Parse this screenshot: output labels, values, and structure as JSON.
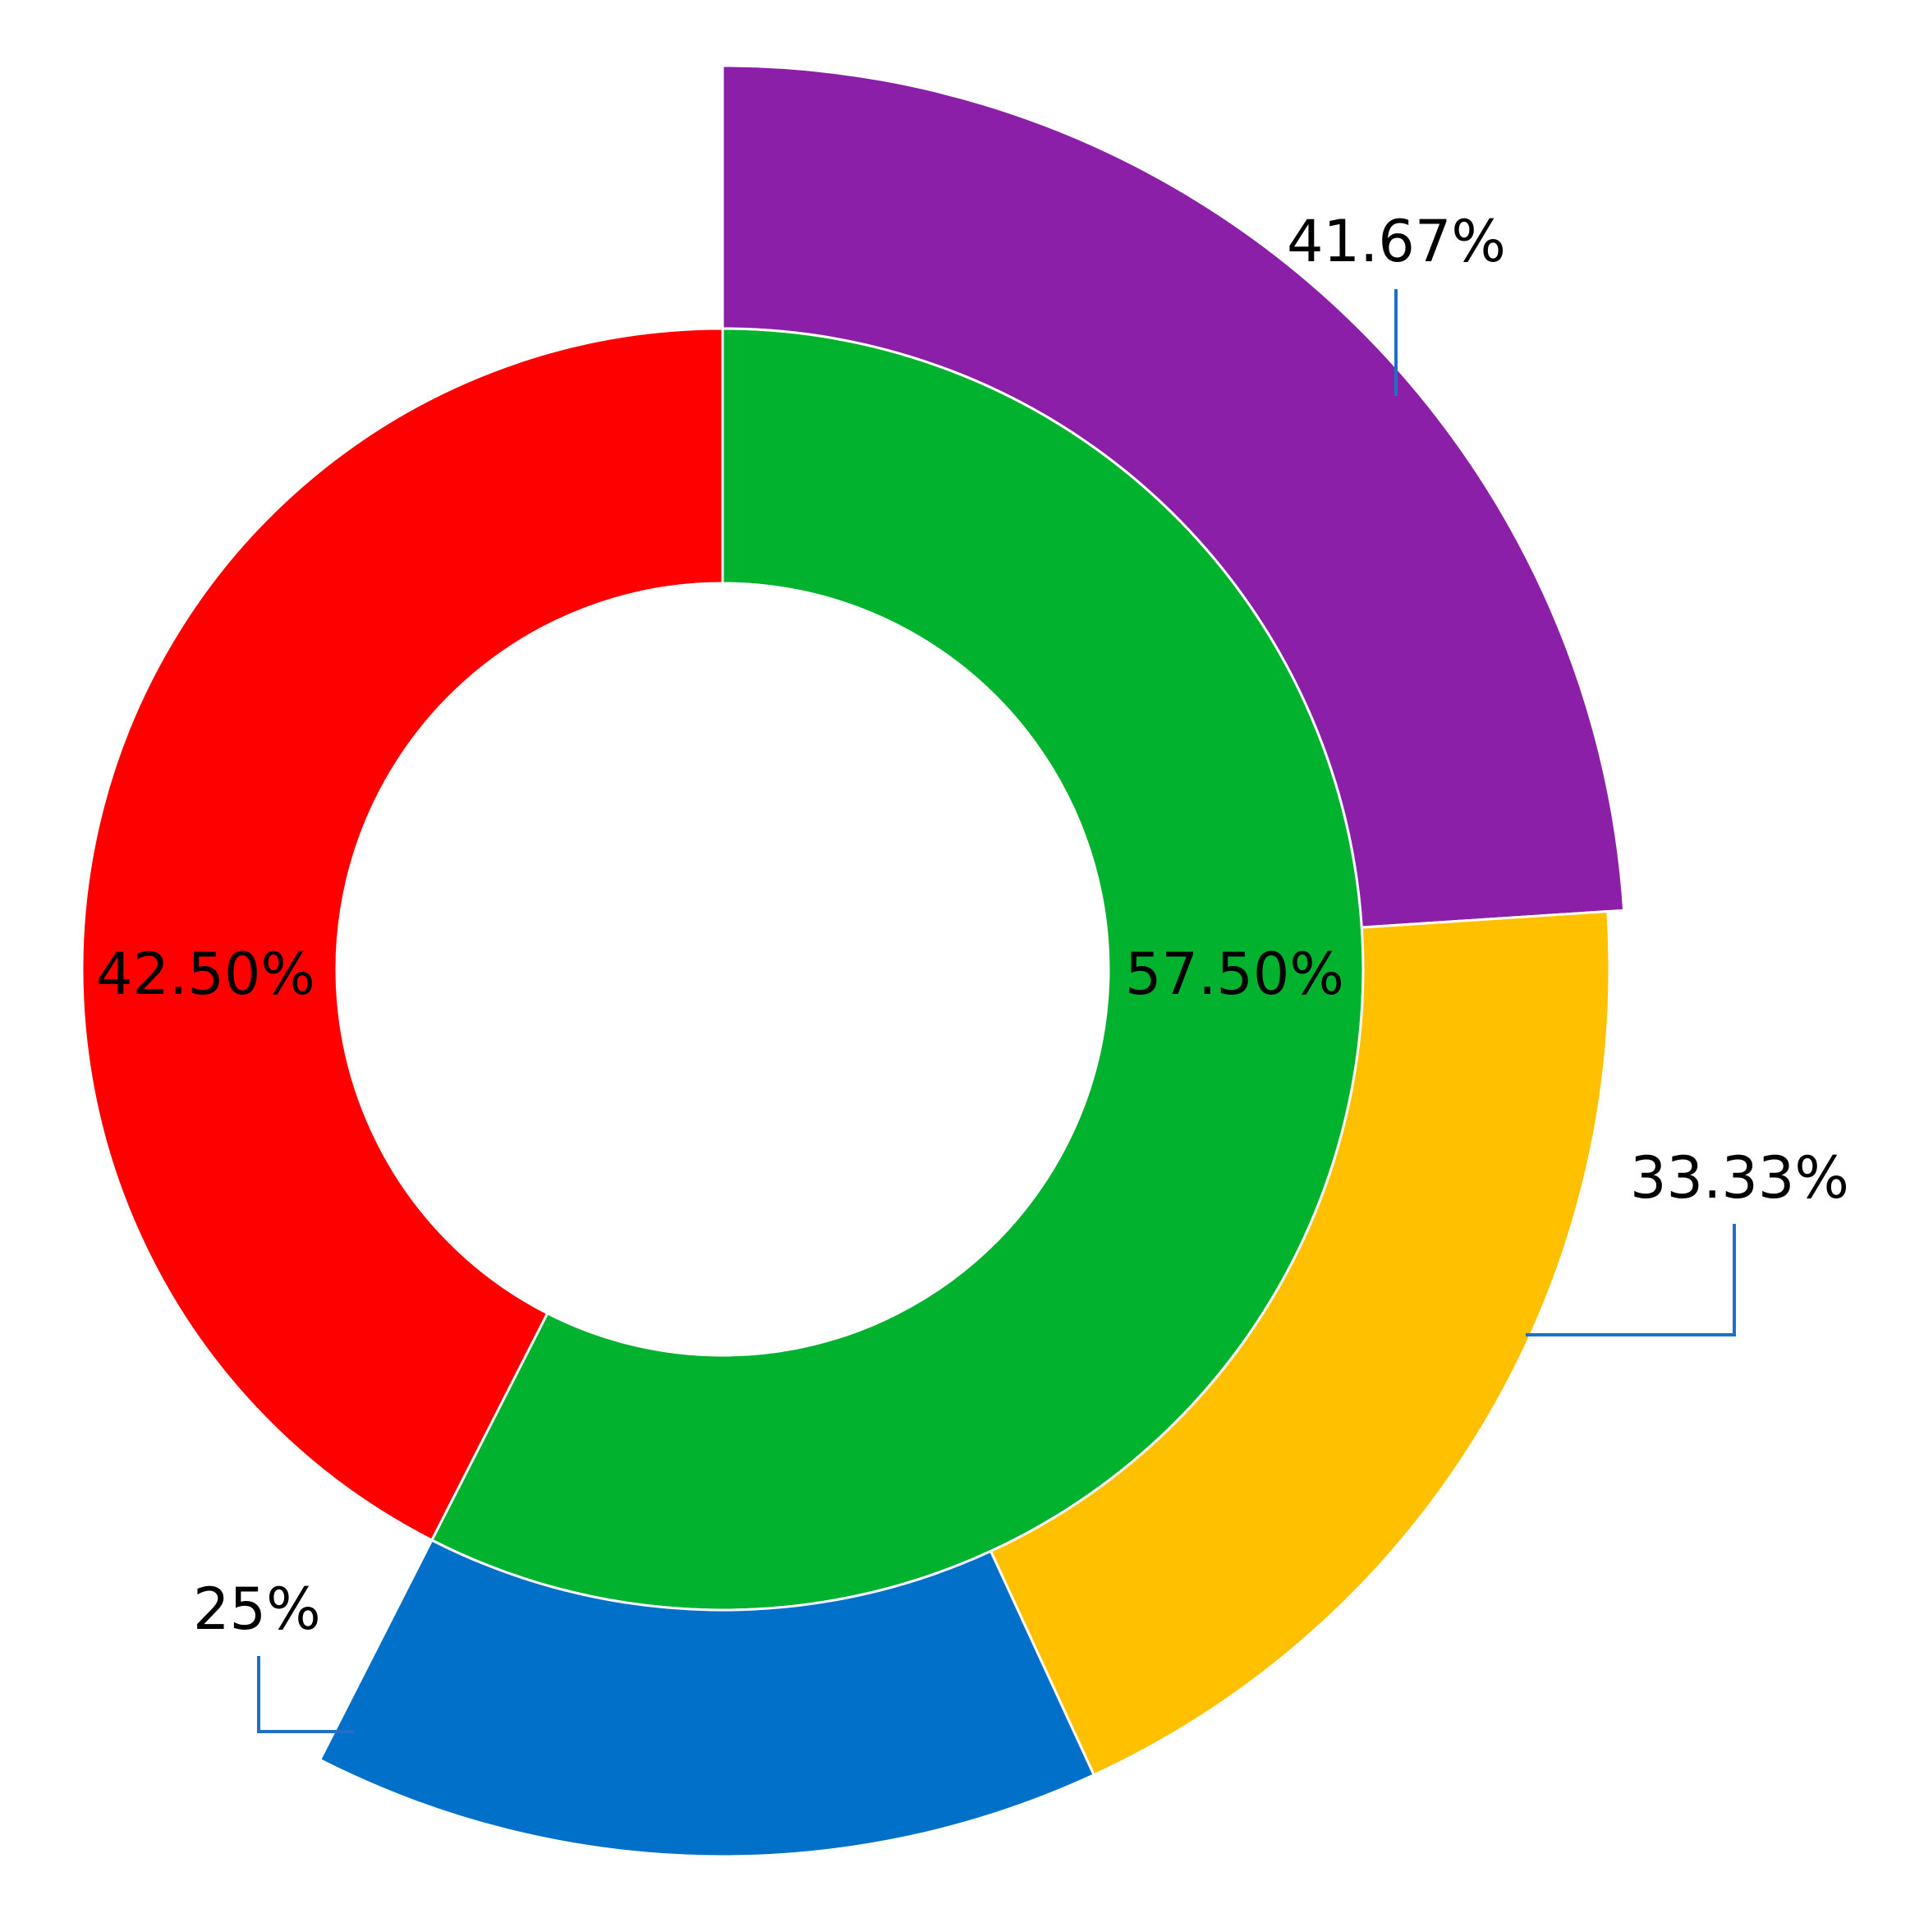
{
  "chart_data": {
    "type": "pie",
    "rings": [
      {
        "ring": "inner",
        "start_angle_deg": 0,
        "direction": "clockwise",
        "slices": [
          {
            "value": 57.5,
            "label": "57.50%",
            "color": "#00B22E"
          },
          {
            "value": 42.5,
            "label": "42.50%",
            "color": "#FF0000"
          }
        ]
      },
      {
        "ring": "outer",
        "start_angle_deg": 0,
        "span_deg": 207,
        "direction": "clockwise",
        "slices": [
          {
            "value": 41.67,
            "label": "41.67%",
            "color": "#8B1FA8"
          },
          {
            "value": 33.33,
            "label": "33.33%",
            "color": "#FFC000"
          },
          {
            "value": 25,
            "label": "25%",
            "color": "#0070C9"
          }
        ]
      }
    ],
    "leader_line_color": "#1F6FC4",
    "legend": "none"
  }
}
